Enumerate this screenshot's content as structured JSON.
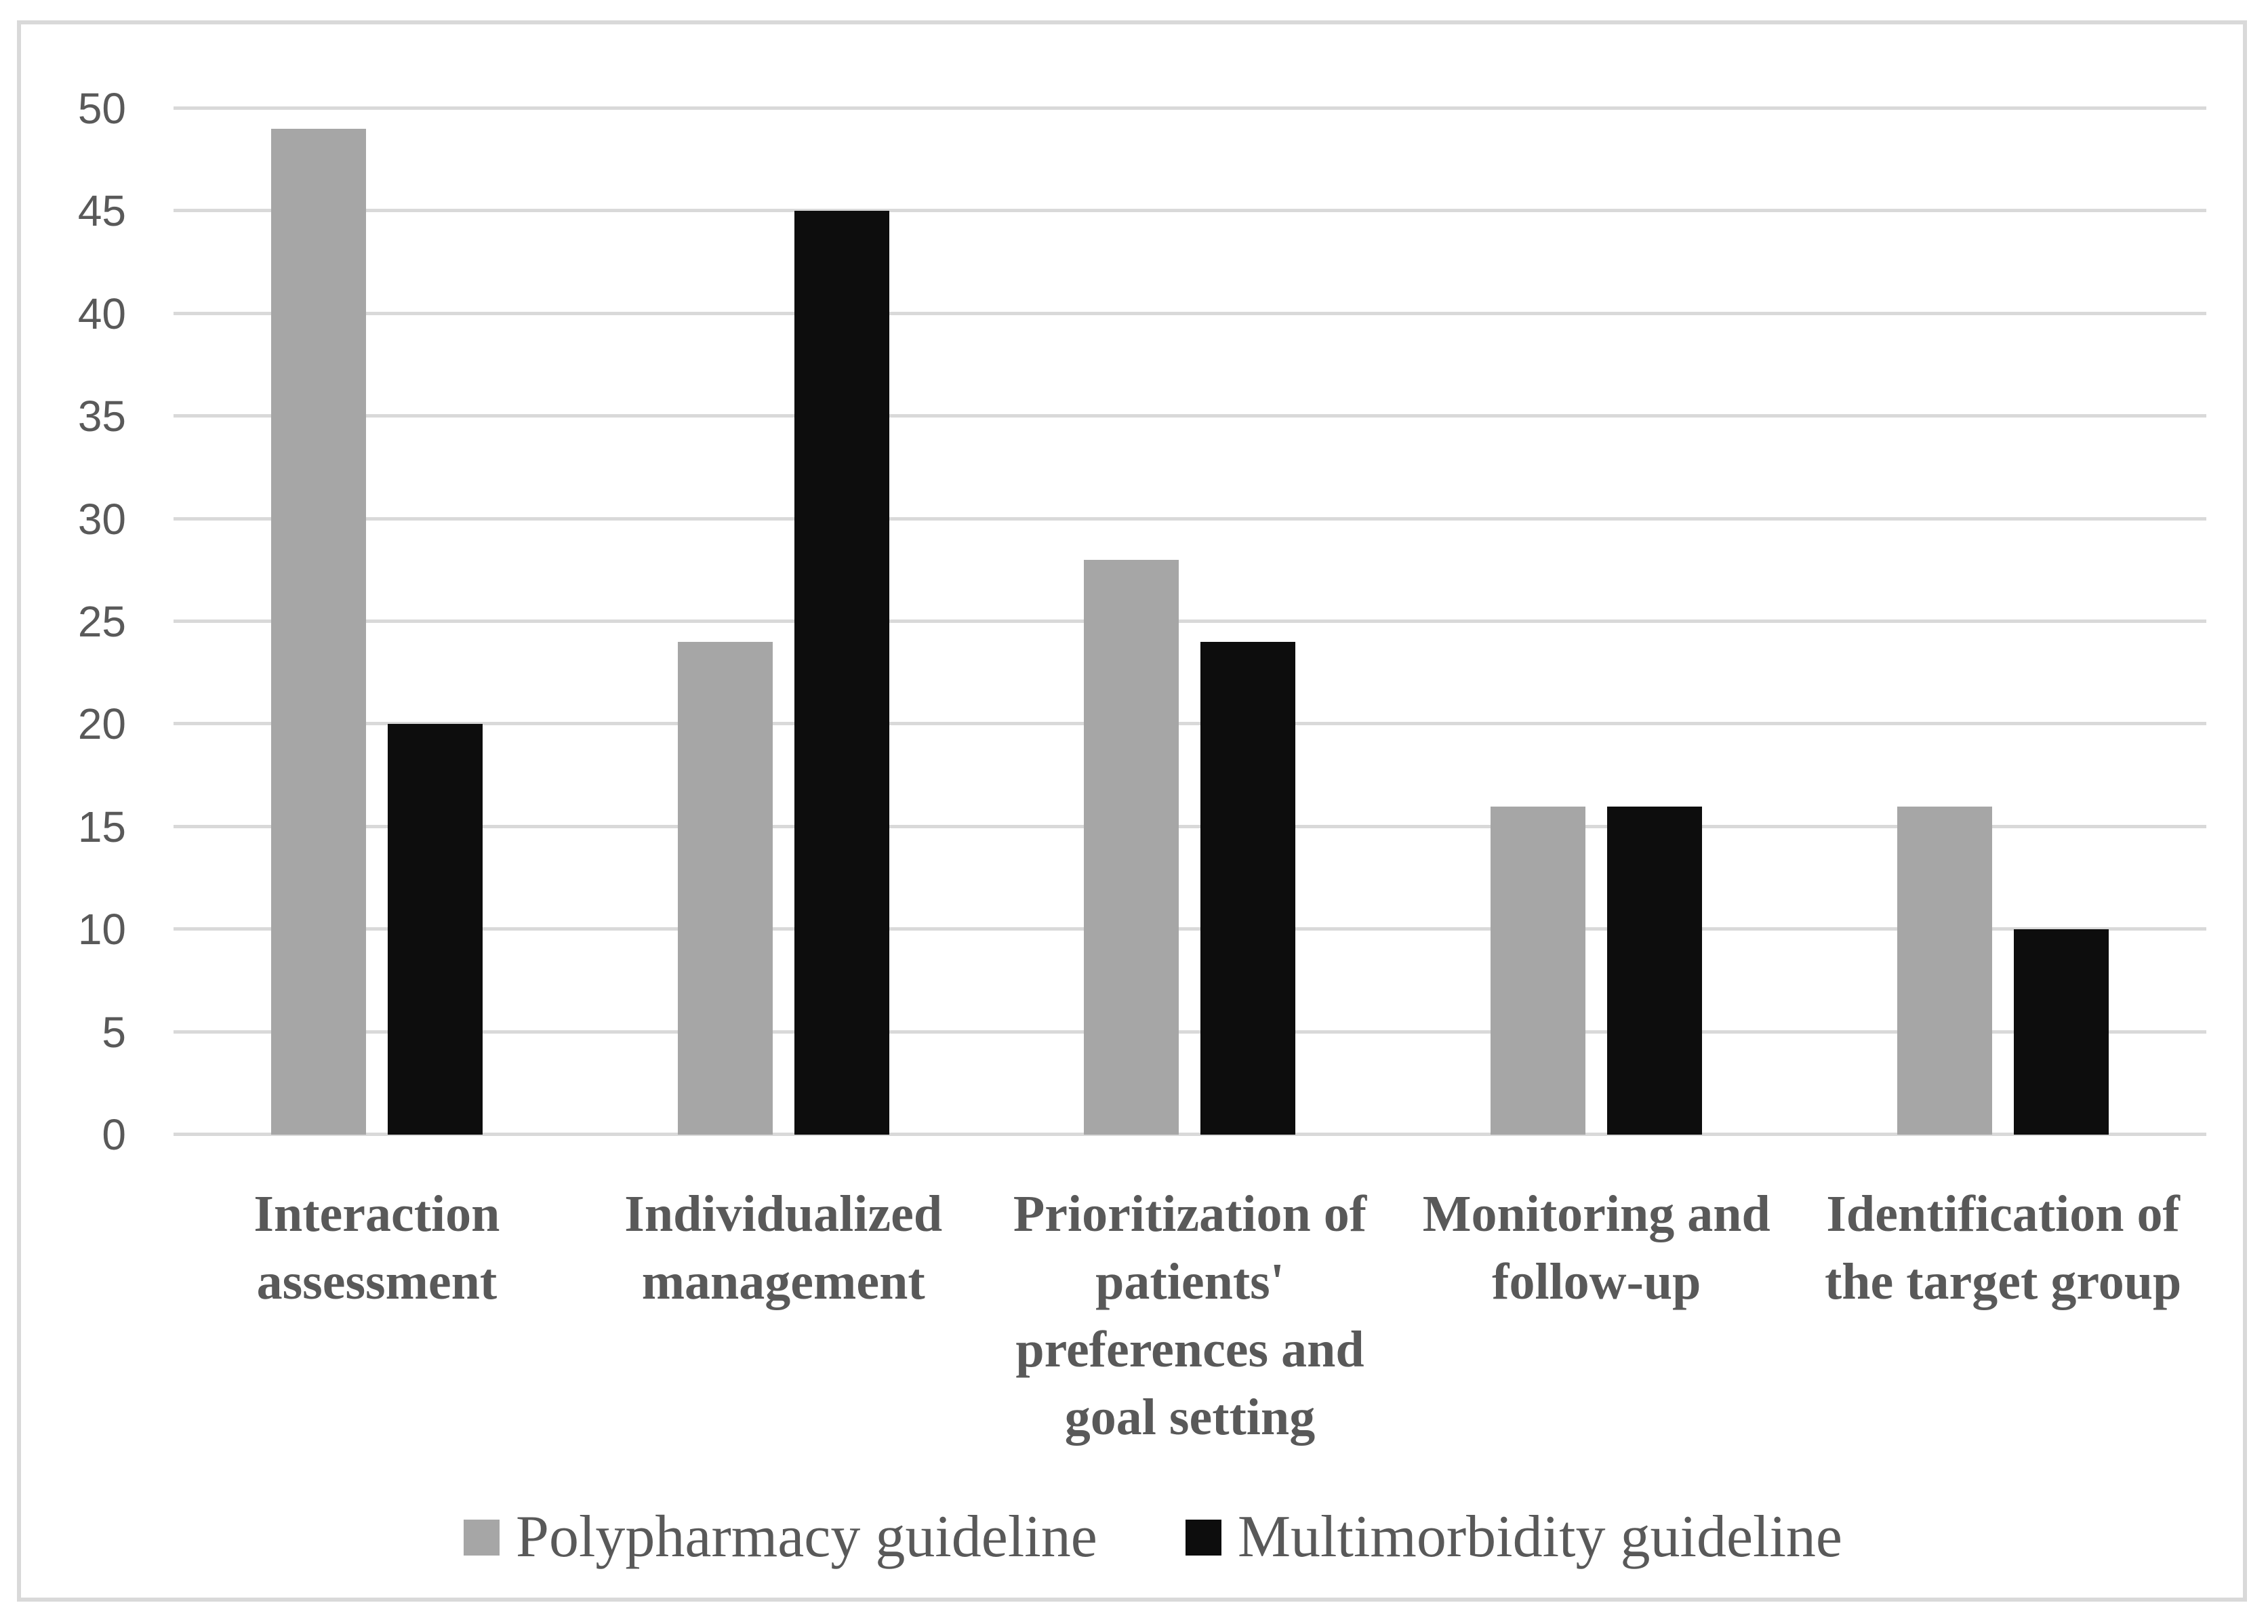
{
  "chart_data": {
    "type": "bar",
    "title": "",
    "categories": [
      "Interaction assessment",
      "Individualized management",
      "Prioritization of patients' preferences and goal setting",
      "Monitoring and follow-up",
      "Identification of the target group"
    ],
    "category_lines": [
      [
        "Interaction",
        "assessment"
      ],
      [
        "Individualized",
        "management"
      ],
      [
        "Prioritization of",
        "patients'",
        "preferences and",
        "goal setting"
      ],
      [
        "Monitoring and",
        "follow-up"
      ],
      [
        "Identification of",
        "the target group"
      ]
    ],
    "series": [
      {
        "name": "Polypharmacy guideline",
        "color": "#A6A6A6",
        "values": [
          49,
          24,
          28,
          16,
          16
        ]
      },
      {
        "name": "Multimorbidity guideline",
        "color": "#0D0D0D",
        "values": [
          20,
          45,
          24,
          16,
          10
        ]
      }
    ],
    "xlabel": "",
    "ylabel": "",
    "ylim": [
      0,
      50
    ],
    "yticks": [
      0,
      5,
      10,
      15,
      20,
      25,
      30,
      35,
      40,
      45,
      50
    ],
    "grid": true,
    "legend_position": "bottom",
    "colors": {
      "gridline": "#D9D9D9",
      "figure_border": "#D9D9D9",
      "tick_label_text": "#595959",
      "category_label_text": "#595959",
      "legend_text": "#595959",
      "background": "#FFFFFF"
    }
  }
}
